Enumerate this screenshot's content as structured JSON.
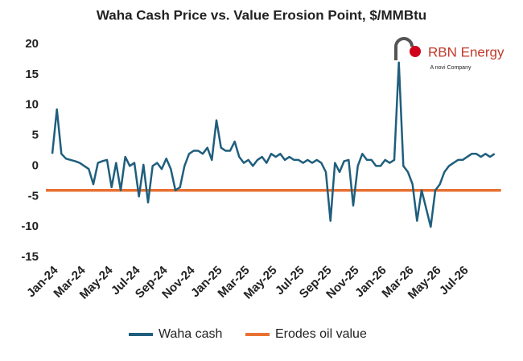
{
  "chart_data": {
    "type": "line",
    "title": "Waha Cash Price vs. Value Erosion Point, $/MMBtu",
    "logo": {
      "name": "RBN Energy",
      "tagline": "A novi Company"
    },
    "categories": [
      "Jan-24",
      null,
      null,
      null,
      null,
      null,
      "Mar-24",
      null,
      null,
      null,
      null,
      null,
      "May-24",
      null,
      null,
      null,
      null,
      null,
      "Jul-24",
      null,
      null,
      null,
      null,
      null,
      "Sep-24",
      null,
      null,
      null,
      null,
      null,
      "Nov-24",
      null,
      null,
      null,
      null,
      null,
      "Jan-25",
      null,
      null,
      null,
      null,
      null,
      "Mar-25",
      null,
      null,
      null,
      null,
      null,
      "May-25",
      null,
      null,
      null,
      null,
      null,
      "Jul-25",
      null,
      null,
      null,
      null,
      null,
      "Sep-25",
      null,
      null,
      null,
      null,
      null,
      "Nov-25",
      null,
      null,
      null,
      null,
      null,
      "Jan-26",
      null,
      null,
      null,
      null,
      null,
      "Mar-26",
      null,
      null,
      null,
      null,
      null,
      "May-26",
      null,
      null,
      null,
      null,
      null,
      "Jul-26",
      null,
      null,
      null,
      null,
      null,
      null,
      null
    ],
    "series": [
      {
        "name": "Waha cash",
        "color": "#1f5e7d",
        "values": [
          2,
          9.3,
          2,
          1.2,
          1,
          0.8,
          0.5,
          0,
          -0.5,
          -3,
          0.5,
          0.8,
          1,
          -3.5,
          0.5,
          -4,
          1.5,
          0,
          0.5,
          -5,
          0.2,
          -6,
          0,
          0.5,
          -0.5,
          1.2,
          -0.5,
          -4,
          -3.5,
          0,
          2,
          2.5,
          2.5,
          2,
          3,
          1,
          7.5,
          3,
          2.5,
          2.5,
          4,
          1.5,
          0.5,
          1,
          0,
          1,
          1.5,
          0.5,
          2,
          1.5,
          2,
          1,
          1.5,
          1,
          1,
          0.5,
          1,
          0.5,
          1,
          0.5,
          -1,
          -9,
          0.5,
          -1,
          0.8,
          1,
          -6.5,
          0,
          2,
          1,
          1,
          0,
          0,
          1,
          0.5,
          1,
          17,
          0,
          -1,
          -3,
          -9,
          -4,
          -7,
          -10,
          -4,
          -3,
          -1,
          0,
          0.5,
          1,
          1,
          1.5,
          2,
          2,
          1.5,
          2,
          1.5,
          2
        ]
      }
    ],
    "reference_line": {
      "name": "Erodes oil value",
      "value": -4,
      "color": "#e97132"
    },
    "ylim": [
      -15,
      20
    ],
    "yticks": [
      -15,
      -10,
      -5,
      0,
      5,
      10,
      15,
      20
    ],
    "grid": false
  }
}
